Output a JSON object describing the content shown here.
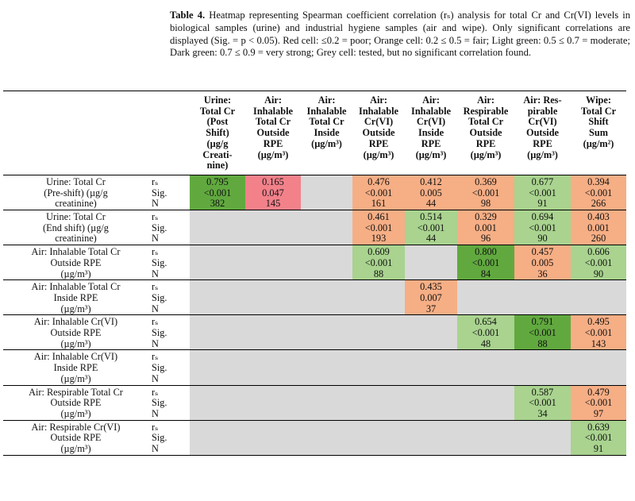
{
  "caption": {
    "label": "Table 4.",
    "text": " Heatmap representing Spearman coefficient correlation (rₛ) analysis for total Cr and Cr(VI) levels in biological samples (urine) and industrial hygiene samples (air and wipe). Only significant correlations are displayed (Sig. = p < 0.05). Red cell: ≤0.2 = poor; Orange cell: 0.2 ≤ 0.5 = fair; Light green: 0.5 ≤ 0.7 = moderate; Dark green: 0.7 ≤ 0.9 = very strong; Grey cell: tested, but no significant correlation found."
  },
  "columns": [
    [
      "Urine:",
      "Total Cr",
      "(Post",
      "Shift)",
      "(µg/g",
      "Creati-",
      "nine)"
    ],
    [
      "Air:",
      "Inhalable",
      "Total Cr",
      "Outside",
      "RPE",
      "(µg/m³)"
    ],
    [
      "Air:",
      "Inhalable",
      "Total Cr",
      "Inside",
      "(µg/m³)"
    ],
    [
      "Air:",
      "Inhalable",
      "Cr(VI)",
      "Outside",
      "RPE",
      "(µg/m³)"
    ],
    [
      "Air:",
      "Inhalable",
      "Cr(VI)",
      "Inside",
      "RPE",
      "(µg/m³)"
    ],
    [
      "Air:",
      "Respirable",
      "Total Cr",
      "Outside",
      "RPE",
      "(µg/m³)"
    ],
    [
      "Air: Res-",
      "pirable",
      "Cr(VI)",
      "Outside",
      "RPE",
      "(µg/m³)"
    ],
    [
      "Wipe:",
      "Total Cr",
      "Shift",
      "Sum",
      "(µg/m²)"
    ]
  ],
  "stat_labels": [
    "rₛ",
    "Sig.",
    "N"
  ],
  "rows": [
    {
      "label": [
        "Urine: Total Cr",
        "(Pre-shift) (µg/g",
        "creatinine)"
      ],
      "cells": [
        {
          "color": "dgreen",
          "v": [
            "0.795",
            "<0.001",
            "382"
          ]
        },
        {
          "color": "red",
          "v": [
            "0.165",
            "0.047",
            "145"
          ]
        },
        {
          "color": "grey",
          "v": []
        },
        {
          "color": "orange",
          "v": [
            "0.476",
            "<0.001",
            "161"
          ]
        },
        {
          "color": "orange",
          "v": [
            "0.412",
            "0.005",
            "44"
          ]
        },
        {
          "color": "orange",
          "v": [
            "0.369",
            "<0.001",
            "98"
          ]
        },
        {
          "color": "lgreen",
          "v": [
            "0.677",
            "<0.001",
            "91"
          ]
        },
        {
          "color": "orange",
          "v": [
            "0.394",
            "<0.001",
            "266"
          ]
        }
      ]
    },
    {
      "label": [
        "Urine: Total Cr",
        "(End shift) (µg/g",
        "creatinine)"
      ],
      "cells": [
        {
          "color": "grey",
          "v": []
        },
        {
          "color": "grey",
          "v": []
        },
        {
          "color": "grey",
          "v": []
        },
        {
          "color": "orange",
          "v": [
            "0.461",
            "<0.001",
            "193"
          ]
        },
        {
          "color": "lgreen",
          "v": [
            "0.514",
            "<0.001",
            "44"
          ]
        },
        {
          "color": "orange",
          "v": [
            "0.329",
            "0.001",
            "96"
          ]
        },
        {
          "color": "lgreen",
          "v": [
            "0.694",
            "<0.001",
            "90"
          ]
        },
        {
          "color": "orange",
          "v": [
            "0.403",
            "0.001",
            "260"
          ]
        }
      ]
    },
    {
      "label": [
        "Air: Inhalable Total Cr",
        "Outside RPE",
        "(µg/m³)"
      ],
      "cells": [
        {
          "color": "grey",
          "v": []
        },
        {
          "color": "grey",
          "v": []
        },
        {
          "color": "grey",
          "v": []
        },
        {
          "color": "lgreen",
          "v": [
            "0.609",
            "<0.001",
            "88"
          ]
        },
        {
          "color": "grey",
          "v": []
        },
        {
          "color": "dgreen",
          "v": [
            "0.800",
            "<0.001",
            "84"
          ]
        },
        {
          "color": "orange",
          "v": [
            "0.457",
            "0.005",
            "36"
          ]
        },
        {
          "color": "lgreen",
          "v": [
            "0.606",
            "<0.001",
            "90"
          ]
        }
      ]
    },
    {
      "label": [
        "Air: Inhalable Total Cr",
        "Inside RPE",
        "(µg/m³)"
      ],
      "cells": [
        {
          "color": "grey",
          "v": []
        },
        {
          "color": "grey",
          "v": []
        },
        {
          "color": "grey",
          "v": []
        },
        {
          "color": "grey",
          "v": []
        },
        {
          "color": "orange",
          "v": [
            "0.435",
            "0.007",
            "37"
          ]
        },
        {
          "color": "grey",
          "v": []
        },
        {
          "color": "grey",
          "v": []
        },
        {
          "color": "grey",
          "v": []
        }
      ]
    },
    {
      "label": [
        "Air: Inhalable Cr(VI)",
        "Outside RPE",
        "(µg/m³)"
      ],
      "cells": [
        {
          "color": "grey",
          "v": []
        },
        {
          "color": "grey",
          "v": []
        },
        {
          "color": "grey",
          "v": []
        },
        {
          "color": "grey",
          "v": []
        },
        {
          "color": "grey",
          "v": []
        },
        {
          "color": "lgreen",
          "v": [
            "0.654",
            "<0.001",
            "48"
          ]
        },
        {
          "color": "dgreen",
          "v": [
            "0.791",
            "<0.001",
            "88"
          ]
        },
        {
          "color": "orange",
          "v": [
            "0.495",
            "<0.001",
            "143"
          ]
        }
      ]
    },
    {
      "label": [
        "Air: Inhalable Cr(VI)",
        "Inside RPE",
        "(µg/m³)"
      ],
      "cells": [
        {
          "color": "grey",
          "v": []
        },
        {
          "color": "grey",
          "v": []
        },
        {
          "color": "grey",
          "v": []
        },
        {
          "color": "grey",
          "v": []
        },
        {
          "color": "grey",
          "v": []
        },
        {
          "color": "grey",
          "v": []
        },
        {
          "color": "grey",
          "v": []
        },
        {
          "color": "grey",
          "v": []
        }
      ]
    },
    {
      "label": [
        "Air: Respirable Total Cr",
        "Outside RPE",
        "(µg/m³)"
      ],
      "cells": [
        {
          "color": "grey",
          "v": []
        },
        {
          "color": "grey",
          "v": []
        },
        {
          "color": "grey",
          "v": []
        },
        {
          "color": "grey",
          "v": []
        },
        {
          "color": "grey",
          "v": []
        },
        {
          "color": "grey",
          "v": []
        },
        {
          "color": "lgreen",
          "v": [
            "0.587",
            "<0.001",
            "34"
          ]
        },
        {
          "color": "orange",
          "v": [
            "0.479",
            "<0.001",
            "97"
          ]
        }
      ]
    },
    {
      "label": [
        "Air: Respirable Cr(VI)",
        "Outside RPE",
        "(µg/m³)"
      ],
      "cells": [
        {
          "color": "grey",
          "v": []
        },
        {
          "color": "grey",
          "v": []
        },
        {
          "color": "grey",
          "v": []
        },
        {
          "color": "grey",
          "v": []
        },
        {
          "color": "grey",
          "v": []
        },
        {
          "color": "grey",
          "v": []
        },
        {
          "color": "grey",
          "v": []
        },
        {
          "color": "lgreen",
          "v": [
            "0.639",
            "<0.001",
            "91"
          ]
        }
      ]
    }
  ],
  "colors": {
    "red": "#f2818a",
    "orange": "#f6ae85",
    "lgreen": "#a9d38f",
    "dgreen": "#61a93f",
    "grey": "#d9d9d9"
  }
}
